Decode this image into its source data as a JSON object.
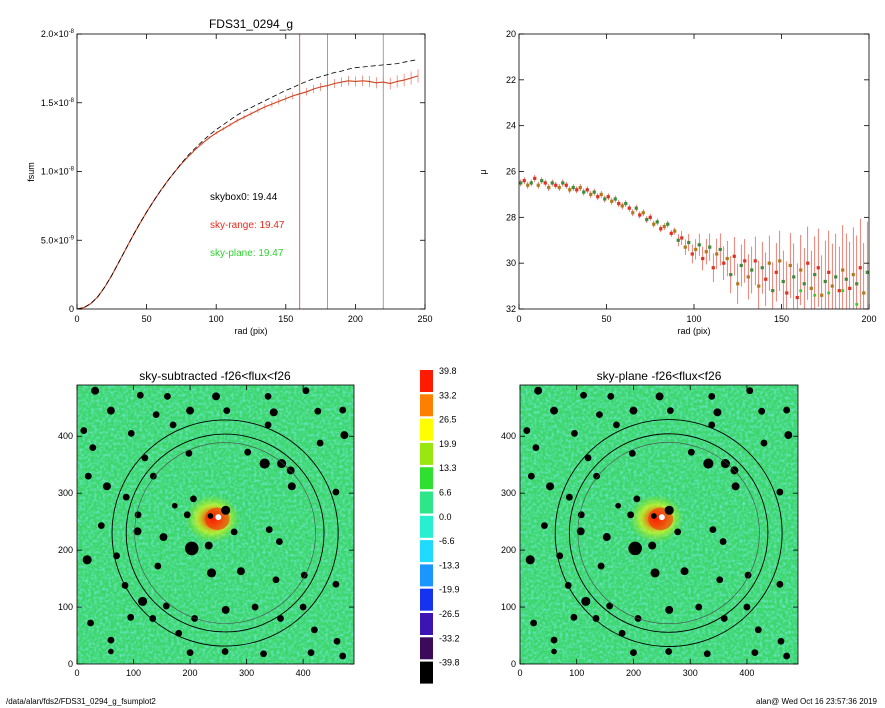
{
  "charts": {
    "fsum": {
      "type": "line",
      "title": "FDS31_0294_g",
      "xlabel": "rad (pix)",
      "ylabel": "fsum",
      "xlim": [
        0,
        250
      ],
      "ylim": [
        0,
        2e-08
      ],
      "xticks": [
        "0",
        "50",
        "100",
        "150",
        "200",
        "250"
      ],
      "xtick_values": [
        0,
        50,
        100,
        150,
        200,
        250
      ],
      "yticks": [
        {
          "mant": "0",
          "exp": ""
        },
        {
          "mant": "5.0×10",
          "exp": "-9"
        },
        {
          "mant": "1.0×10",
          "exp": "-8"
        },
        {
          "mant": "1.5×10",
          "exp": "-8"
        },
        {
          "mant": "2.0×10",
          "exp": "-8"
        }
      ],
      "ytick_values": [
        0,
        5e-09,
        1e-08,
        1.5e-08,
        2e-08
      ],
      "vlines": [
        {
          "x": 160,
          "color": "#d94030"
        },
        {
          "x": 180,
          "color": "#888888"
        },
        {
          "x": 220,
          "color": "#888888"
        }
      ],
      "annotations": [
        {
          "text": "skybox0: 19.44",
          "color": "#000000"
        },
        {
          "text": "sky-range: 19.47",
          "color": "#e8281e"
        },
        {
          "text": "sky-plane: 19.47",
          "color": "#30d030"
        }
      ],
      "series": [
        {
          "style": "solid-errorbars",
          "color": "#e03020",
          "x": [
            0,
            5,
            10,
            15,
            20,
            25,
            30,
            35,
            40,
            45,
            50,
            55,
            60,
            65,
            70,
            75,
            80,
            85,
            90,
            95,
            100,
            105,
            110,
            115,
            120,
            125,
            130,
            135,
            140,
            145,
            150,
            155,
            160,
            165,
            170,
            175,
            180,
            185,
            190,
            195,
            200,
            205,
            210,
            215,
            220,
            225,
            230,
            235,
            240,
            245
          ],
          "y": [
            0,
            1e-10,
            4e-10,
            9e-10,
            1.6e-09,
            2.45e-09,
            3.4e-09,
            4.35e-09,
            5.3e-09,
            6.2e-09,
            7.05e-09,
            7.85e-09,
            8.6e-09,
            9.3e-09,
            9.95e-09,
            1.055e-08,
            1.11e-08,
            1.16e-08,
            1.205e-08,
            1.245e-08,
            1.28e-08,
            1.31e-08,
            1.34e-08,
            1.37e-08,
            1.395e-08,
            1.42e-08,
            1.445e-08,
            1.47e-08,
            1.49e-08,
            1.51e-08,
            1.53e-08,
            1.55e-08,
            1.565e-08,
            1.58e-08,
            1.6e-08,
            1.615e-08,
            1.625e-08,
            1.64e-08,
            1.65e-08,
            1.66e-08,
            1.655e-08,
            1.66e-08,
            1.655e-08,
            1.645e-08,
            1.65e-08,
            1.64e-08,
            1.655e-08,
            1.665e-08,
            1.68e-08,
            1.695e-08
          ]
        },
        {
          "style": "dashed",
          "color": "#000000",
          "x": [
            0,
            5,
            10,
            15,
            20,
            25,
            30,
            35,
            40,
            45,
            50,
            55,
            60,
            65,
            70,
            75,
            80,
            85,
            90,
            95,
            100,
            105,
            110,
            115,
            120,
            125,
            130,
            135,
            140,
            145,
            150,
            155,
            160,
            165,
            170,
            175,
            180,
            185,
            190,
            195,
            200,
            205,
            210,
            215,
            220,
            225,
            230,
            235,
            240,
            245
          ],
          "y": [
            0,
            1e-10,
            4e-10,
            9e-10,
            1.6e-09,
            2.45e-09,
            3.4e-09,
            4.35e-09,
            5.3e-09,
            6.2e-09,
            7.05e-09,
            7.85e-09,
            8.6e-09,
            9.3e-09,
            9.95e-09,
            1.06e-08,
            1.12e-08,
            1.17e-08,
            1.22e-08,
            1.265e-08,
            1.305e-08,
            1.34e-08,
            1.375e-08,
            1.41e-08,
            1.44e-08,
            1.465e-08,
            1.49e-08,
            1.515e-08,
            1.54e-08,
            1.565e-08,
            1.59e-08,
            1.61e-08,
            1.635e-08,
            1.655e-08,
            1.675e-08,
            1.69e-08,
            1.705e-08,
            1.72e-08,
            1.73e-08,
            1.745e-08,
            1.755e-08,
            1.76e-08,
            1.765e-08,
            1.77e-08,
            1.775e-08,
            1.78e-08,
            1.785e-08,
            1.795e-08,
            1.805e-08,
            1.815e-08
          ]
        }
      ]
    },
    "mu": {
      "type": "scatter",
      "xlabel": "rad (pix)",
      "ylabel": "μ",
      "xlim": [
        0,
        200
      ],
      "ylim": [
        32,
        20
      ],
      "xticks": [
        "0",
        "50",
        "100",
        "150",
        "200"
      ],
      "xtick_values": [
        0,
        50,
        100,
        150,
        200
      ],
      "yticks": [
        "20",
        "22",
        "24",
        "26",
        "28",
        "30",
        "32"
      ],
      "ytick_values": [
        20,
        22,
        24,
        26,
        28,
        30,
        32
      ],
      "points_x": [
        1,
        3,
        5,
        7,
        9,
        11,
        13,
        15,
        17,
        19,
        21,
        23,
        25,
        27,
        29,
        31,
        33,
        35,
        37,
        39,
        41,
        43,
        45,
        47,
        49,
        51,
        53,
        55,
        57,
        59,
        61,
        63,
        65,
        67,
        69,
        71,
        73,
        75,
        77,
        79,
        81,
        83,
        85,
        87,
        89,
        91,
        93,
        95,
        97,
        99,
        101,
        103,
        105,
        107,
        109,
        111,
        113,
        115,
        117,
        119,
        121,
        123,
        125,
        127,
        129,
        131,
        133,
        135,
        137,
        139,
        141,
        143,
        145,
        147,
        149,
        151,
        153,
        155,
        157,
        159,
        161,
        163,
        165,
        167,
        169,
        171,
        173,
        175,
        177,
        179,
        181,
        183,
        185,
        187,
        189,
        191,
        193,
        195,
        197,
        199
      ],
      "points_y": [
        26.5,
        26.4,
        26.6,
        26.5,
        26.3,
        26.6,
        26.4,
        26.5,
        26.7,
        26.5,
        26.6,
        26.7,
        26.5,
        26.6,
        26.8,
        26.7,
        26.8,
        26.7,
        26.9,
        26.8,
        27.0,
        26.9,
        27.1,
        27.0,
        27.2,
        27.1,
        27.3,
        27.2,
        27.4,
        27.5,
        27.4,
        27.6,
        27.8,
        27.6,
        27.9,
        27.8,
        28.1,
        28.0,
        28.3,
        28.2,
        28.5,
        28.4,
        28.3,
        28.7,
        28.6,
        29.0,
        28.9,
        29.3,
        29.1,
        29.6,
        29.4,
        29.2,
        29.8,
        29.5,
        29.3,
        30.2,
        29.6,
        29.4,
        30.0,
        29.8,
        30.5,
        29.7,
        30.9,
        30.1,
        29.9,
        30.6,
        30.3,
        29.9,
        31.0,
        30.2,
        30.7,
        30.0,
        31.2,
        30.4,
        29.9,
        30.8,
        31.3,
        30.1,
        30.6,
        31.5,
        30.3,
        30.9,
        30.0,
        31.1,
        30.5,
        30.2,
        31.4,
        30.8,
        30.4,
        31.0,
        30.6,
        31.2,
        30.3,
        30.7,
        31.1,
        30.5,
        30.9,
        30.2,
        31.3,
        30.4
      ],
      "marker_colors": [
        "#3d8a3d",
        "#e03020",
        "#b07a1a"
      ],
      "errorbar_color": "#e03020"
    },
    "image_left": {
      "type": "heatmap",
      "title": "sky-subtracted -f26<flux<f26",
      "xlim": [
        0,
        490
      ],
      "ylim": [
        0,
        490
      ],
      "xticks": [
        "0",
        "100",
        "200",
        "300",
        "400"
      ],
      "xtick_values": [
        0,
        100,
        200,
        300,
        400
      ],
      "yticks": [
        "0",
        "100",
        "200",
        "300",
        "400"
      ],
      "ytick_values": [
        0,
        100,
        200,
        300,
        400
      ]
    },
    "image_right": {
      "type": "heatmap",
      "title": "sky-plane -f26<flux<f26",
      "xlim": [
        0,
        490
      ],
      "ylim": [
        0,
        490
      ],
      "xticks": [
        "0",
        "100",
        "200",
        "300",
        "400"
      ],
      "xtick_values": [
        0,
        100,
        200,
        300,
        400
      ],
      "yticks": [
        "0",
        "100",
        "200",
        "300",
        "400"
      ],
      "ytick_values": [
        0,
        100,
        200,
        300,
        400
      ]
    },
    "colorbar": {
      "labels": [
        "39.8",
        "33.2",
        "26.5",
        "19.9",
        "13.3",
        "6.6",
        "0.0",
        "-6.6",
        "-13.3",
        "-19.9",
        "-26.5",
        "-33.2",
        "-39.8"
      ],
      "colors": [
        "#ff1a00",
        "#ff8000",
        "#ffff00",
        "#9ae60f",
        "#30e030",
        "#2ee68a",
        "#26f0d0",
        "#1fdcff",
        "#1a96ff",
        "#1432f0",
        "#3c14b4",
        "#3c0a5a",
        "#000000"
      ]
    }
  },
  "image": {
    "background": "#3cd66a",
    "ring_center": [
      262,
      230
    ],
    "ring_radii": [
      200,
      175,
      160
    ],
    "masks": [
      [
        32,
        480,
        7
      ],
      [
        112,
        472,
        6
      ],
      [
        160,
        470,
        6
      ],
      [
        246,
        470,
        7
      ],
      [
        338,
        470,
        6
      ],
      [
        405,
        480,
        6
      ],
      [
        60,
        445,
        7
      ],
      [
        140,
        438,
        6
      ],
      [
        200,
        445,
        7
      ],
      [
        265,
        445,
        6
      ],
      [
        348,
        442,
        7
      ],
      [
        426,
        444,
        6
      ],
      [
        470,
        446,
        6
      ],
      [
        12,
        410,
        6
      ],
      [
        96,
        405,
        6
      ],
      [
        170,
        420,
        6
      ],
      [
        338,
        420,
        6
      ],
      [
        430,
        388,
        6
      ],
      [
        473,
        402,
        7
      ],
      [
        28,
        380,
        6
      ],
      [
        20,
        330,
        6
      ],
      [
        120,
        362,
        6
      ],
      [
        198,
        370,
        6
      ],
      [
        302,
        372,
        6
      ],
      [
        332,
        352,
        9
      ],
      [
        362,
        352,
        8
      ],
      [
        378,
        340,
        7
      ],
      [
        135,
        330,
        6
      ],
      [
        380,
        312,
        7
      ],
      [
        458,
        302,
        6
      ],
      [
        53,
        312,
        7
      ],
      [
        87,
        293,
        6
      ],
      [
        108,
        262,
        6
      ],
      [
        173,
        278,
        5
      ],
      [
        206,
        290,
        6
      ],
      [
        236,
        260,
        5
      ],
      [
        263,
        270,
        8
      ],
      [
        195,
        262,
        6
      ],
      [
        203,
        203,
        12
      ],
      [
        233,
        208,
        7
      ],
      [
        278,
        232,
        6
      ],
      [
        153,
        223,
        7
      ],
      [
        340,
        236,
        6
      ],
      [
        358,
        215,
        6
      ],
      [
        43,
        243,
        6
      ],
      [
        107,
        233,
        7
      ],
      [
        18,
        183,
        8
      ],
      [
        70,
        190,
        6
      ],
      [
        85,
        138,
        6
      ],
      [
        143,
        172,
        6
      ],
      [
        238,
        160,
        8
      ],
      [
        290,
        163,
        7
      ],
      [
        352,
        148,
        6
      ],
      [
        402,
        156,
        6
      ],
      [
        458,
        140,
        6
      ],
      [
        116,
        110,
        8
      ],
      [
        158,
        102,
        6
      ],
      [
        263,
        95,
        7
      ],
      [
        315,
        100,
        6
      ],
      [
        400,
        100,
        6
      ],
      [
        208,
        80,
        6
      ],
      [
        24,
        72,
        6
      ],
      [
        95,
        82,
        6
      ],
      [
        134,
        80,
        6
      ],
      [
        180,
        54,
        6
      ],
      [
        360,
        80,
        6
      ],
      [
        420,
        60,
        6
      ],
      [
        460,
        40,
        6
      ],
      [
        60,
        42,
        6
      ],
      [
        60,
        22,
        5
      ],
      [
        200,
        20,
        6
      ],
      [
        262,
        22,
        6
      ],
      [
        330,
        18,
        6
      ],
      [
        414,
        20,
        6
      ],
      [
        470,
        14,
        6
      ]
    ]
  },
  "footer": {
    "path": "/data/alan/fds2/FDS31_0294_g_fsumplot2",
    "user_time": "alan@   Wed Oct 16 23:57:36 2019"
  }
}
